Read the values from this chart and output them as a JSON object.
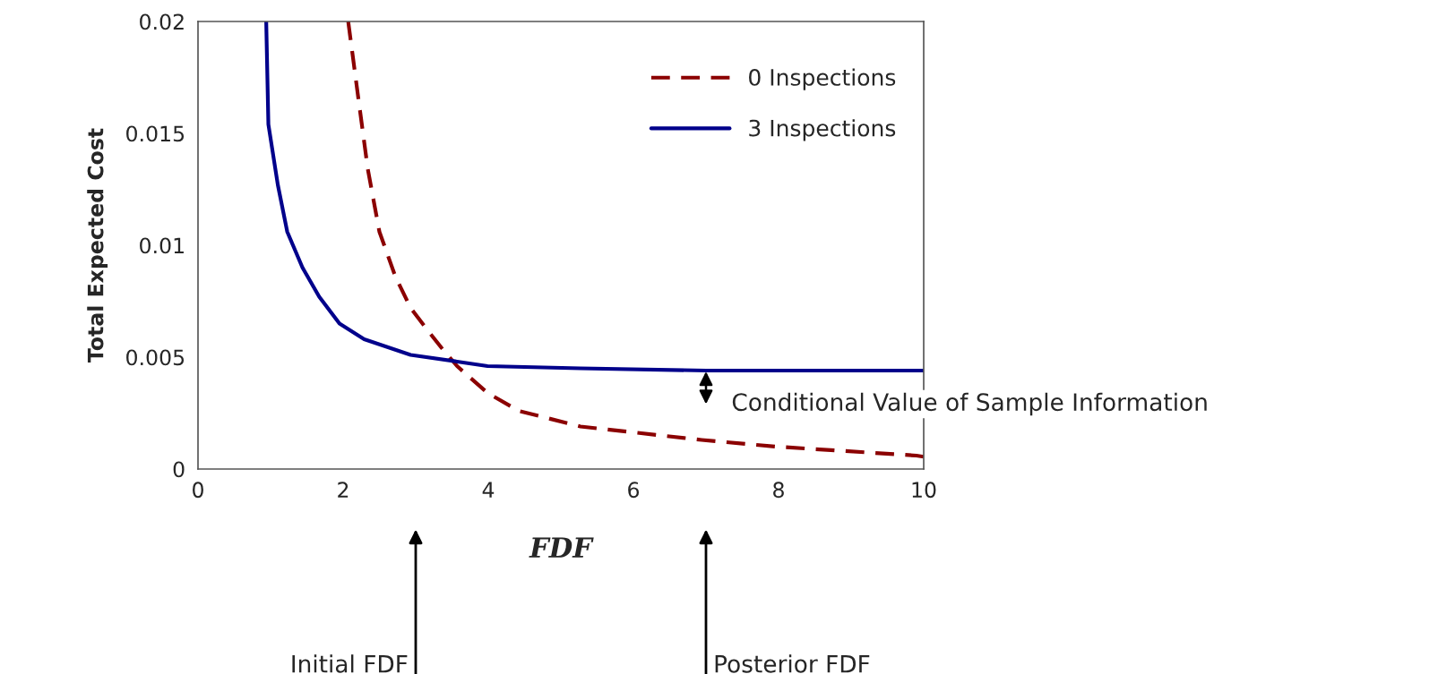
{
  "chart_data": {
    "type": "line",
    "xlabel": "FDF",
    "ylabel": "Total Expected Cost",
    "xlim": [
      0,
      10
    ],
    "ylim": [
      0,
      0.02
    ],
    "xticks": [
      0,
      2,
      4,
      6,
      8,
      10
    ],
    "yticks": [
      0,
      0.005,
      0.01,
      0.015,
      0.02
    ],
    "grid": false,
    "legend": "top right",
    "series": [
      {
        "name": "0 Inspections",
        "color": "#8b0000",
        "line_style": "dashed",
        "x": [
          2.07,
          2.2,
          2.34,
          2.5,
          2.72,
          2.93,
          3.14,
          3.36,
          3.57,
          3.99,
          4.42,
          5.27,
          6.94,
          7.97,
          9.9,
          10
        ],
        "values": [
          0.02,
          0.0168,
          0.0134,
          0.0106,
          0.0086,
          0.0072,
          0.0063,
          0.0054,
          0.0046,
          0.0034,
          0.0026,
          0.0019,
          0.0013,
          0.001,
          0.0006,
          0.00055
        ]
      },
      {
        "name": "3 Inspections",
        "color": "#00008b",
        "line_style": "solid",
        "x": [
          0.94,
          0.97,
          1.1,
          1.23,
          1.44,
          1.67,
          1.95,
          2.29,
          2.93,
          3.57,
          3.99,
          5.27,
          7,
          10
        ],
        "values": [
          0.02,
          0.0154,
          0.0127,
          0.0106,
          0.009,
          0.0077,
          0.0065,
          0.0058,
          0.0051,
          0.0048,
          0.0046,
          0.0045,
          0.0044,
          0.0044
        ]
      }
    ],
    "annotations": [
      "Conditional Value of Sample Information",
      "Initial FDF",
      "Posterior FDF"
    ]
  }
}
